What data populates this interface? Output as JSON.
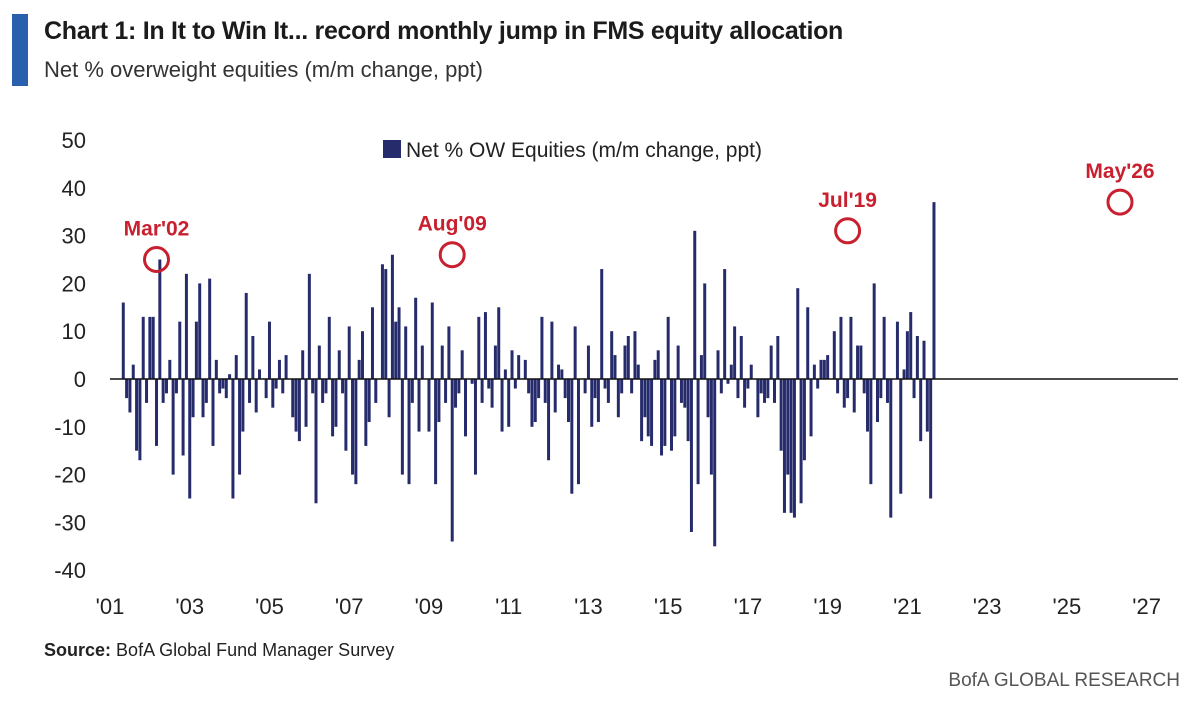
{
  "header": {
    "title": "Chart 1: In It to Win It... record monthly jump in FMS equity allocation",
    "subtitle": "Net % overweight equities (m/m change, ppt)"
  },
  "footer": {
    "source_label": "Source:",
    "source_text": "BofA Global Fund Manager Survey",
    "brand": "BofA GLOBAL RESEARCH"
  },
  "colors": {
    "bar": "#262b6b",
    "annotation": "#c8202f",
    "accent": "#2a5fae",
    "axis": "#111111"
  },
  "chart_data": {
    "type": "bar",
    "title": "Chart 1: In It to Win It... record monthly jump in FMS equity allocation",
    "subtitle": "Net % overweight equities (m/m change, ppt)",
    "legend": {
      "label": "Net % OW Equities (m/m change, ppt)",
      "placement": "top-center"
    },
    "ylim": [
      -40,
      50
    ],
    "yticks": [
      50,
      40,
      30,
      20,
      10,
      0,
      -10,
      -20,
      -30,
      -40
    ],
    "xlim": [
      2001.0,
      2027.0
    ],
    "xticks": [
      2001,
      2003,
      2005,
      2007,
      2009,
      2011,
      2013,
      2015,
      2017,
      2019,
      2021,
      2023,
      2025,
      2027
    ],
    "xtick_labels": [
      "'01",
      "'03",
      "'05",
      "'07",
      "'09",
      "'11",
      "'13",
      "'15",
      "'17",
      "'19",
      "'21",
      "'23",
      "'25",
      "'27"
    ],
    "grid": false,
    "x_start": "2001-05",
    "series": [
      {
        "name": "Net % OW Equities (m/m change, ppt)",
        "values": [
          16,
          -4,
          -7,
          3,
          -15,
          -17,
          13,
          -5,
          13,
          13,
          -14,
          25,
          -5,
          -3,
          4,
          -20,
          -3,
          12,
          -16,
          22,
          -25,
          -8,
          12,
          20,
          -8,
          -5,
          21,
          -14,
          4,
          -3,
          -2,
          -4,
          1,
          -25,
          5,
          -20,
          -11,
          18,
          -5,
          9,
          -7,
          2,
          0,
          -4,
          12,
          -6,
          -2,
          4,
          -3,
          5,
          0,
          -8,
          -11,
          -13,
          6,
          -10,
          22,
          -3,
          -26,
          7,
          -5,
          -3,
          13,
          -12,
          -10,
          6,
          -3,
          -15,
          11,
          -20,
          -22,
          4,
          10,
          -14,
          -9,
          15,
          -5,
          0,
          24,
          23,
          -8,
          26,
          12,
          15,
          -20,
          11,
          -22,
          -5,
          17,
          -11,
          7,
          0,
          -11,
          16,
          -22,
          -9,
          7,
          -5,
          11,
          -34,
          -6,
          -3,
          6,
          -12,
          0,
          -1,
          -20,
          13,
          -5,
          14,
          -2,
          -6,
          7,
          15,
          -11,
          2,
          -10,
          6,
          -2,
          5,
          0,
          4,
          -3,
          -10,
          -9,
          -4,
          13,
          -5,
          -17,
          12,
          -7,
          3,
          2,
          -4,
          -9,
          -24,
          11,
          -22,
          0,
          -3,
          7,
          -10,
          -4,
          -9,
          23,
          -2,
          -5,
          10,
          5,
          -8,
          -3,
          7,
          9,
          -3,
          10,
          3,
          -13,
          -8,
          -12,
          -14,
          4,
          6,
          -16,
          -14,
          13,
          -15,
          -12,
          7,
          -5,
          -6,
          -13,
          -32,
          31,
          -22,
          5,
          20,
          -8,
          -20,
          -35,
          6,
          -3,
          23,
          -1,
          3,
          11,
          -4,
          9,
          -6,
          -2,
          3,
          0,
          -8,
          -3,
          -5,
          -4,
          7,
          -5,
          9,
          -15,
          -28,
          -20,
          -28,
          -29,
          19,
          -26,
          -17,
          15,
          -12,
          3,
          -2,
          4,
          4,
          5,
          0,
          10,
          -3,
          13,
          -6,
          -4,
          13,
          -7,
          7,
          7,
          -3,
          -11,
          -22,
          20,
          -9,
          -4,
          13,
          -5,
          -29,
          0,
          12,
          -24,
          2,
          10,
          14,
          -4,
          9,
          -13,
          8,
          -11,
          -25,
          37
        ]
      }
    ],
    "annotations": [
      {
        "label": "Mar'02",
        "x": "2002-03",
        "y": 25
      },
      {
        "label": "Aug'09",
        "x": "2009-08",
        "y": 26
      },
      {
        "label": "Jul'19",
        "x": "2019-07",
        "y": 31
      },
      {
        "label": "May'26",
        "x": "2026-05",
        "y": 37
      }
    ]
  }
}
